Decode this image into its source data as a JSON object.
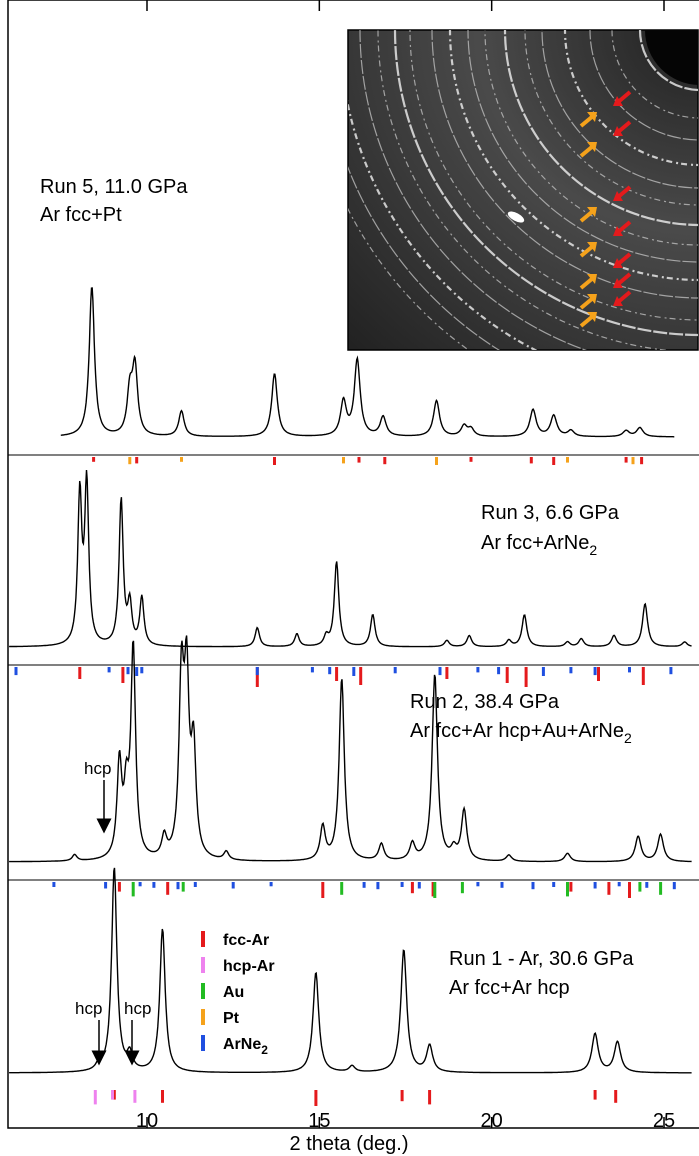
{
  "chart_data": {
    "type": "line",
    "xlabel": "2 theta (deg.)",
    "xlim": [
      6.0,
      25.8
    ],
    "xticks": [
      10,
      15,
      20,
      25
    ],
    "xtick_labels": [
      "10",
      "15",
      "20",
      "25"
    ],
    "grid": false,
    "legend": {
      "placement": "inside-bottom-panel",
      "entries": [
        {
          "label": "fcc-Ar",
          "color": "#e41a1c"
        },
        {
          "label": "hcp-Ar",
          "color": "#ee82ee"
        },
        {
          "label": "Au",
          "color": "#22bb22"
        },
        {
          "label": "Pt",
          "color": "#f5a21b"
        },
        {
          "label": "ArNe",
          "sub": "2",
          "color": "#1f4fe0"
        }
      ]
    },
    "inset": {
      "kind": "diffraction-image",
      "arrow_colors": [
        "#e41a1c",
        "#f5a21b"
      ]
    },
    "panels": [
      {
        "id": "run5",
        "title": "Run 5, 11.0 GPa",
        "subtitle": "Ar fcc+Pt",
        "x_range": [
          7.5,
          25.3
        ],
        "peaks": [
          {
            "x": 8.4,
            "h": 1.0
          },
          {
            "x": 9.5,
            "h": 0.28
          },
          {
            "x": 9.65,
            "h": 0.45
          },
          {
            "x": 11.0,
            "h": 0.17
          },
          {
            "x": 13.7,
            "h": 0.42
          },
          {
            "x": 15.7,
            "h": 0.23
          },
          {
            "x": 16.1,
            "h": 0.51
          },
          {
            "x": 16.85,
            "h": 0.13
          },
          {
            "x": 18.4,
            "h": 0.24
          },
          {
            "x": 19.2,
            "h": 0.07
          },
          {
            "x": 19.4,
            "h": 0.05
          },
          {
            "x": 21.2,
            "h": 0.18
          },
          {
            "x": 21.8,
            "h": 0.14
          },
          {
            "x": 22.3,
            "h": 0.04
          },
          {
            "x": 23.9,
            "h": 0.04
          },
          {
            "x": 24.3,
            "h": 0.06
          }
        ],
        "ticks": {
          "fcc-Ar": [
            8.45,
            9.7,
            13.7,
            16.15,
            16.9,
            19.4,
            21.15,
            21.8,
            23.9,
            24.35
          ],
          "Pt": [
            9.5,
            11.0,
            15.7,
            18.4,
            22.2,
            24.1
          ]
        }
      },
      {
        "id": "run3",
        "title": "Run 3, 6.6 GPa",
        "subtitle": "Ar fcc+ArNe",
        "subtitle_sub": "2",
        "x_range": [
          6.0,
          25.8
        ],
        "peaks": [
          {
            "x": 8.05,
            "h": 0.93
          },
          {
            "x": 8.25,
            "h": 1.0
          },
          {
            "x": 9.25,
            "h": 0.91
          },
          {
            "x": 9.5,
            "h": 0.25
          },
          {
            "x": 9.85,
            "h": 0.3
          },
          {
            "x": 13.2,
            "h": 0.12
          },
          {
            "x": 14.35,
            "h": 0.08
          },
          {
            "x": 15.2,
            "h": 0.06
          },
          {
            "x": 15.5,
            "h": 0.53
          },
          {
            "x": 16.55,
            "h": 0.2
          },
          {
            "x": 18.7,
            "h": 0.04
          },
          {
            "x": 19.35,
            "h": 0.07
          },
          {
            "x": 20.5,
            "h": 0.04
          },
          {
            "x": 20.95,
            "h": 0.2
          },
          {
            "x": 22.2,
            "h": 0.03
          },
          {
            "x": 22.6,
            "h": 0.05
          },
          {
            "x": 23.55,
            "h": 0.07
          },
          {
            "x": 24.45,
            "h": 0.27
          },
          {
            "x": 25.6,
            "h": 0.03
          }
        ],
        "ticks": {
          "fcc-Ar": [
            8.05,
            9.3,
            13.2,
            15.5,
            16.2,
            18.7,
            20.45,
            21.0,
            23.1,
            24.4
          ],
          "ArNe2": [
            6.2,
            8.9,
            9.45,
            9.7,
            9.85,
            13.2,
            14.8,
            15.3,
            16.0,
            17.2,
            18.5,
            19.6,
            20.2,
            21.5,
            22.3,
            23.0,
            24.0,
            25.2
          ]
        }
      },
      {
        "id": "run2",
        "title": "Run 2, 38.4 GPa",
        "subtitle": "Ar fcc+Ar hcp+Au+ArNe",
        "subtitle_sub": "2",
        "annotation": "hcp",
        "x_range": [
          6.0,
          25.8
        ],
        "peaks": [
          {
            "x": 7.9,
            "h": 0.03
          },
          {
            "x": 9.2,
            "h": 0.45
          },
          {
            "x": 9.4,
            "h": 0.28
          },
          {
            "x": 9.6,
            "h": 1.0
          },
          {
            "x": 10.5,
            "h": 0.1
          },
          {
            "x": 11.0,
            "h": 0.82
          },
          {
            "x": 11.15,
            "h": 0.8
          },
          {
            "x": 11.35,
            "h": 0.5
          },
          {
            "x": 12.3,
            "h": 0.04
          },
          {
            "x": 15.1,
            "h": 0.16
          },
          {
            "x": 15.65,
            "h": 0.87
          },
          {
            "x": 16.8,
            "h": 0.08
          },
          {
            "x": 17.7,
            "h": 0.08
          },
          {
            "x": 18.35,
            "h": 0.89
          },
          {
            "x": 18.9,
            "h": 0.05
          },
          {
            "x": 19.2,
            "h": 0.24
          },
          {
            "x": 20.5,
            "h": 0.03
          },
          {
            "x": 22.2,
            "h": 0.04
          },
          {
            "x": 24.25,
            "h": 0.12
          },
          {
            "x": 24.9,
            "h": 0.13
          }
        ],
        "ticks": {
          "fcc-Ar": [
            9.2,
            10.6,
            15.1,
            17.7,
            18.3,
            22.3,
            23.4,
            24.0
          ],
          "Au": [
            9.6,
            11.05,
            15.65,
            18.35,
            19.15,
            22.2,
            24.3,
            24.9
          ],
          "ArNe2": [
            7.3,
            8.8,
            9.8,
            10.2,
            10.9,
            11.4,
            12.5,
            13.6,
            16.3,
            16.7,
            17.4,
            17.9,
            19.6,
            20.3,
            21.2,
            21.8,
            23.0,
            23.7,
            24.5,
            25.3
          ]
        }
      },
      {
        "id": "run1",
        "title": "Run 1 - Ar, 30.6 GPa",
        "subtitle": "Ar fcc+Ar hcp",
        "annotation_left": "hcp",
        "annotation_right": "hcp",
        "x_range": [
          6.0,
          25.8
        ],
        "peaks": [
          {
            "x": 8.6,
            "h": 0.03
          },
          {
            "x": 9.05,
            "h": 1.0
          },
          {
            "x": 9.5,
            "h": 0.08
          },
          {
            "x": 10.45,
            "h": 0.7
          },
          {
            "x": 14.9,
            "h": 0.49
          },
          {
            "x": 15.95,
            "h": 0.03
          },
          {
            "x": 17.45,
            "h": 0.6
          },
          {
            "x": 18.2,
            "h": 0.13
          },
          {
            "x": 23.0,
            "h": 0.19
          },
          {
            "x": 23.65,
            "h": 0.15
          }
        ],
        "ticks": {
          "fcc-Ar": [
            9.05,
            10.45,
            14.9,
            17.4,
            18.2,
            23.0,
            23.6
          ],
          "hcp-Ar": [
            8.5,
            9.0,
            9.65
          ]
        }
      }
    ]
  }
}
